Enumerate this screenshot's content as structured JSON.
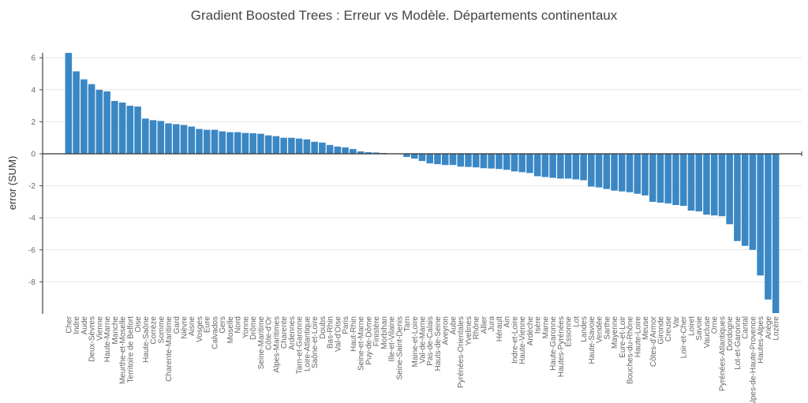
{
  "chart_data": {
    "type": "bar",
    "title": "Gradient Boosted Trees : Erreur vs Modèle. Départements continentaux",
    "xlabel": "",
    "ylabel": "error (SUM)",
    "ylim": [
      -10,
      6.3
    ],
    "yticks": [
      6,
      4,
      2,
      0,
      -2,
      -4,
      -6,
      -8
    ],
    "grid": true,
    "bar_color": "#3a87c4",
    "categories": [
      "Cher",
      "Indre",
      "Aude",
      "Deux-Sèvres",
      "Vienne",
      "Haute-Marne",
      "Manche",
      "Meurthe-et-Moselle",
      "Territoire de Belfort",
      "Oise",
      "Haute-Saône",
      "Corrèze",
      "Somme",
      "Charente-Maritime",
      "Gard",
      "Nièvre",
      "Aisne",
      "Vosges",
      "Eure",
      "Calvados",
      "Gers",
      "Moselle",
      "Nord",
      "Yonne",
      "Drôme",
      "Seine-Maritime",
      "Côte-d'Or",
      "Alpes-Maritimes",
      "Charente",
      "Ardennes",
      "Tarn-et-Garonne",
      "Loire-Atlantique",
      "Saône-et-Loire",
      "Doubs",
      "Bas-Rhin",
      "Val-d'Oise",
      "Paris",
      "Haut-Rhin",
      "Seine-et-Marne",
      "Puy-de-Dôme",
      "Finistère",
      "Morbihan",
      "Ille-et-Vilaine",
      "Seine-Saint-Denis",
      "Tarn",
      "Maine-et-Loire",
      "Val-de-Marne",
      "Pas-de-Calais",
      "Hauts-de-Seine",
      "Aveyron",
      "Aube",
      "Pyrénées-Orientales",
      "Yvelines",
      "Rhône",
      "Allier",
      "Jura",
      "Hérault",
      "Ain",
      "Indre-et-Loire",
      "Haute-Vienne",
      "Ardèche",
      "Isère",
      "Marne",
      "Haute-Garonne",
      "Hautes-Pyrénées",
      "Essonne",
      "Lot",
      "Landes",
      "Haute-Savoie",
      "Vendée",
      "Sarthe",
      "Mayenne",
      "Eure-et-Loir",
      "Bouches-du-Rhône",
      "Haute-Loire",
      "Meuse",
      "Côtes-d'Armor",
      "Gironde",
      "Creuse",
      "Var",
      "Loir-et-Cher",
      "Loiret",
      "Savoie",
      "Vaucluse",
      "Orne",
      "Pyrénées-Atlantiques",
      "Dordogne",
      "Lot-et-Garonne",
      "Cantal",
      "Alpes-de-Haute-Provence",
      "Hautes-Alpes",
      "Ariège",
      "Lozère"
    ],
    "values": [
      6.3,
      5.15,
      4.65,
      4.35,
      4.0,
      3.9,
      3.3,
      3.2,
      3.0,
      2.95,
      2.2,
      2.1,
      2.05,
      1.9,
      1.85,
      1.8,
      1.7,
      1.55,
      1.5,
      1.5,
      1.4,
      1.35,
      1.35,
      1.3,
      1.28,
      1.25,
      1.15,
      1.1,
      1.0,
      1.0,
      0.95,
      0.9,
      0.75,
      0.7,
      0.55,
      0.45,
      0.4,
      0.3,
      0.15,
      0.1,
      0.08,
      0.05,
      0.03,
      0.0,
      -0.2,
      -0.3,
      -0.45,
      -0.6,
      -0.65,
      -0.7,
      -0.7,
      -0.8,
      -0.82,
      -0.85,
      -0.9,
      -0.92,
      -0.95,
      -1.0,
      -1.1,
      -1.15,
      -1.2,
      -1.4,
      -1.45,
      -1.5,
      -1.55,
      -1.55,
      -1.6,
      -1.65,
      -2.05,
      -2.1,
      -2.2,
      -2.3,
      -2.35,
      -2.4,
      -2.5,
      -2.6,
      -3.0,
      -3.05,
      -3.1,
      -3.2,
      -3.25,
      -3.55,
      -3.6,
      -3.8,
      -3.85,
      -3.9,
      -4.4,
      -5.45,
      -5.75,
      -6.0,
      -7.6,
      -9.1,
      -9.95
    ]
  }
}
